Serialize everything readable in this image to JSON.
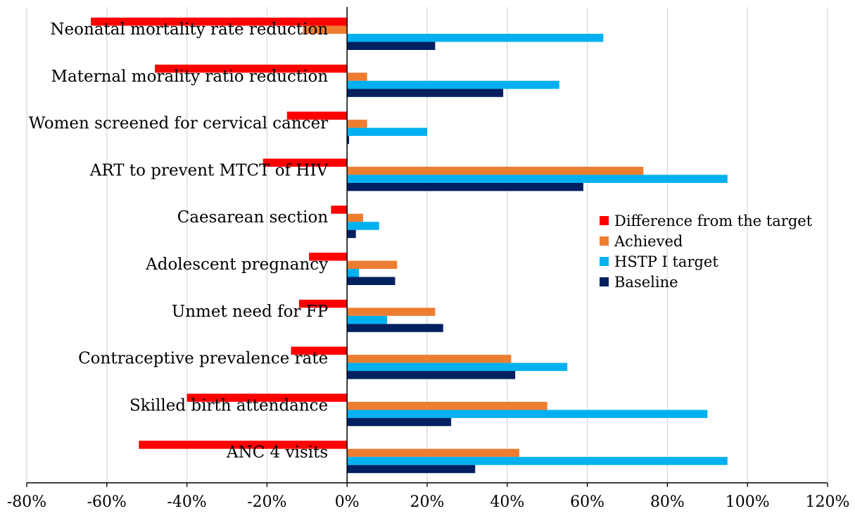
{
  "chart_data": {
    "type": "bar",
    "orientation": "horizontal",
    "title": "",
    "xlabel": "",
    "ylabel": "",
    "xlim": [
      -80,
      120
    ],
    "x_ticks": [
      "-80%",
      "-60%",
      "-40%",
      "-20%",
      "0%",
      "20%",
      "40%",
      "60%",
      "80%",
      "100%",
      "120%"
    ],
    "grid": "vertical",
    "legend_position": "right",
    "categories": [
      "Neonatal mortality rate reduction",
      "Maternal morality ratio reduction",
      "Women screened for cervical cancer",
      "ART to prevent MTCT of HIV",
      "Caesarean section",
      "Adolescent pregnancy",
      "Unmet need for FP",
      "Contraceptive prevalence rate",
      "Skilled birth attendance",
      "ANC 4 visits"
    ],
    "series": [
      {
        "name": "Difference from the target",
        "color": "#ff0000",
        "values": [
          -64,
          -48,
          -15,
          -21,
          -4,
          -9.5,
          -12,
          -14,
          -40,
          -52
        ]
      },
      {
        "name": "Achieved",
        "color": "#ed7d31",
        "values": [
          -11,
          5,
          5,
          74,
          4,
          12.5,
          22,
          41,
          50,
          43
        ]
      },
      {
        "name": "HSTP I target",
        "color": "#00b0f0",
        "values": [
          64,
          53,
          20,
          95,
          8,
          3,
          10,
          55,
          90,
          95
        ]
      },
      {
        "name": "Baseline",
        "color": "#002060",
        "values": [
          22,
          39,
          0.5,
          59,
          2.2,
          12,
          24,
          42,
          26,
          32
        ]
      }
    ]
  }
}
